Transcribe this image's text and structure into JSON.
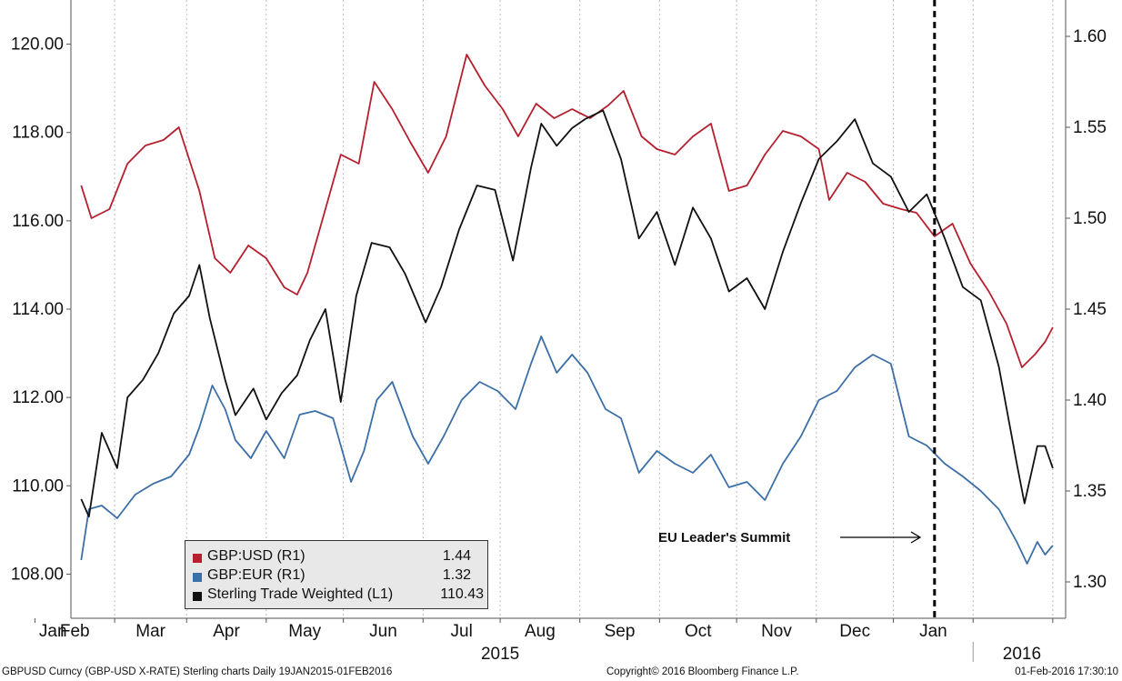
{
  "chart_data": {
    "type": "line",
    "x_months": [
      "Jan",
      "Feb",
      "Mar",
      "Apr",
      "May",
      "Jun",
      "Jul",
      "Aug",
      "Sep",
      "Oct",
      "Nov",
      "Dec",
      "Jan"
    ],
    "x_years": [
      "2015",
      "2016"
    ],
    "date_range": [
      "2015-01-19",
      "2016-02-01"
    ],
    "y_left": {
      "min": 107.0,
      "max": 121.0,
      "ticks": [
        "108.00",
        "110.00",
        "112.00",
        "114.00",
        "116.00",
        "118.00",
        "120.00"
      ]
    },
    "y_right": {
      "min": 1.28,
      "max": 1.62,
      "ticks": [
        "1.30",
        "1.35",
        "1.40",
        "1.45",
        "1.50",
        "1.55",
        "1.60"
      ]
    },
    "grid": "vertical dashed at month boundaries",
    "legend_position": "bottom-left",
    "series": [
      {
        "name": "GBP:USD (R1)",
        "axis": "right",
        "color": "#b51f2e",
        "last": "1.44",
        "points": [
          [
            "2015-01-19",
            1.518
          ],
          [
            "2015-01-23",
            1.5
          ],
          [
            "2015-01-30",
            1.505
          ],
          [
            "2015-02-06",
            1.53
          ],
          [
            "2015-02-13",
            1.54
          ],
          [
            "2015-02-20",
            1.543
          ],
          [
            "2015-02-26",
            1.55
          ],
          [
            "2015-03-06",
            1.515
          ],
          [
            "2015-03-12",
            1.478
          ],
          [
            "2015-03-18",
            1.47
          ],
          [
            "2015-03-25",
            1.485
          ],
          [
            "2015-04-01",
            1.478
          ],
          [
            "2015-04-08",
            1.462
          ],
          [
            "2015-04-13",
            1.458
          ],
          [
            "2015-04-17",
            1.47
          ],
          [
            "2015-04-24",
            1.505
          ],
          [
            "2015-04-30",
            1.535
          ],
          [
            "2015-05-07",
            1.53
          ],
          [
            "2015-05-13",
            1.575
          ],
          [
            "2015-05-20",
            1.56
          ],
          [
            "2015-05-27",
            1.542
          ],
          [
            "2015-06-03",
            1.525
          ],
          [
            "2015-06-10",
            1.545
          ],
          [
            "2015-06-18",
            1.59
          ],
          [
            "2015-06-25",
            1.573
          ],
          [
            "2015-07-02",
            1.56
          ],
          [
            "2015-07-08",
            1.545
          ],
          [
            "2015-07-15",
            1.563
          ],
          [
            "2015-07-22",
            1.555
          ],
          [
            "2015-07-29",
            1.56
          ],
          [
            "2015-08-05",
            1.555
          ],
          [
            "2015-08-12",
            1.562
          ],
          [
            "2015-08-18",
            1.57
          ],
          [
            "2015-08-25",
            1.545
          ],
          [
            "2015-08-31",
            1.538
          ],
          [
            "2015-09-07",
            1.535
          ],
          [
            "2015-09-14",
            1.545
          ],
          [
            "2015-09-21",
            1.552
          ],
          [
            "2015-09-28",
            1.515
          ],
          [
            "2015-10-05",
            1.518
          ],
          [
            "2015-10-12",
            1.535
          ],
          [
            "2015-10-19",
            1.548
          ],
          [
            "2015-10-26",
            1.545
          ],
          [
            "2015-11-02",
            1.538
          ],
          [
            "2015-11-06",
            1.51
          ],
          [
            "2015-11-13",
            1.525
          ],
          [
            "2015-11-20",
            1.52
          ],
          [
            "2015-11-27",
            1.508
          ],
          [
            "2015-12-04",
            1.505
          ],
          [
            "2015-12-10",
            1.503
          ],
          [
            "2015-12-17",
            1.49
          ],
          [
            "2015-12-24",
            1.497
          ],
          [
            "2015-12-31",
            1.475
          ],
          [
            "2016-01-07",
            1.46
          ],
          [
            "2016-01-14",
            1.442
          ],
          [
            "2016-01-20",
            1.418
          ],
          [
            "2016-01-25",
            1.425
          ],
          [
            "2016-01-29",
            1.432
          ],
          [
            "2016-02-01",
            1.44
          ]
        ]
      },
      {
        "name": "GBP:EUR (R1)",
        "axis": "right",
        "color": "#3c6fa6",
        "last": "1.32",
        "points": [
          [
            "2015-01-19",
            1.312
          ],
          [
            "2015-01-22",
            1.34
          ],
          [
            "2015-01-27",
            1.342
          ],
          [
            "2015-02-02",
            1.335
          ],
          [
            "2015-02-09",
            1.348
          ],
          [
            "2015-02-16",
            1.354
          ],
          [
            "2015-02-23",
            1.358
          ],
          [
            "2015-03-02",
            1.37
          ],
          [
            "2015-03-06",
            1.385
          ],
          [
            "2015-03-11",
            1.408
          ],
          [
            "2015-03-16",
            1.395
          ],
          [
            "2015-03-20",
            1.378
          ],
          [
            "2015-03-26",
            1.368
          ],
          [
            "2015-04-01",
            1.383
          ],
          [
            "2015-04-08",
            1.368
          ],
          [
            "2015-04-14",
            1.392
          ],
          [
            "2015-04-20",
            1.394
          ],
          [
            "2015-04-27",
            1.39
          ],
          [
            "2015-05-04",
            1.355
          ],
          [
            "2015-05-09",
            1.372
          ],
          [
            "2015-05-14",
            1.4
          ],
          [
            "2015-05-20",
            1.41
          ],
          [
            "2015-05-28",
            1.38
          ],
          [
            "2015-06-03",
            1.365
          ],
          [
            "2015-06-09",
            1.38
          ],
          [
            "2015-06-16",
            1.4
          ],
          [
            "2015-06-23",
            1.41
          ],
          [
            "2015-06-30",
            1.405
          ],
          [
            "2015-07-07",
            1.395
          ],
          [
            "2015-07-13",
            1.42
          ],
          [
            "2015-07-17",
            1.435
          ],
          [
            "2015-07-23",
            1.415
          ],
          [
            "2015-07-29",
            1.425
          ],
          [
            "2015-08-04",
            1.415
          ],
          [
            "2015-08-11",
            1.395
          ],
          [
            "2015-08-17",
            1.39
          ],
          [
            "2015-08-24",
            1.36
          ],
          [
            "2015-08-31",
            1.372
          ],
          [
            "2015-09-07",
            1.365
          ],
          [
            "2015-09-14",
            1.36
          ],
          [
            "2015-09-21",
            1.37
          ],
          [
            "2015-09-28",
            1.352
          ],
          [
            "2015-10-05",
            1.355
          ],
          [
            "2015-10-12",
            1.345
          ],
          [
            "2015-10-19",
            1.365
          ],
          [
            "2015-10-26",
            1.38
          ],
          [
            "2015-11-02",
            1.4
          ],
          [
            "2015-11-09",
            1.405
          ],
          [
            "2015-11-16",
            1.418
          ],
          [
            "2015-11-23",
            1.425
          ],
          [
            "2015-11-30",
            1.42
          ],
          [
            "2015-12-07",
            1.38
          ],
          [
            "2015-12-14",
            1.375
          ],
          [
            "2015-12-21",
            1.365
          ],
          [
            "2015-12-28",
            1.358
          ],
          [
            "2016-01-04",
            1.35
          ],
          [
            "2016-01-11",
            1.34
          ],
          [
            "2016-01-18",
            1.322
          ],
          [
            "2016-01-22",
            1.31
          ],
          [
            "2016-01-26",
            1.322
          ],
          [
            "2016-01-29",
            1.315
          ],
          [
            "2016-02-01",
            1.32
          ]
        ]
      },
      {
        "name": "Sterling Trade Weighted (L1)",
        "axis": "left",
        "color": "#111111",
        "last": "110.43",
        "points": [
          [
            "2015-01-19",
            109.7
          ],
          [
            "2015-01-22",
            109.3
          ],
          [
            "2015-01-27",
            111.2
          ],
          [
            "2015-02-02",
            110.4
          ],
          [
            "2015-02-06",
            112.0
          ],
          [
            "2015-02-12",
            112.4
          ],
          [
            "2015-02-18",
            113.0
          ],
          [
            "2015-02-24",
            113.9
          ],
          [
            "2015-03-02",
            114.3
          ],
          [
            "2015-03-06",
            115.0
          ],
          [
            "2015-03-10",
            113.8
          ],
          [
            "2015-03-16",
            112.4
          ],
          [
            "2015-03-20",
            111.6
          ],
          [
            "2015-03-27",
            112.2
          ],
          [
            "2015-04-01",
            111.5
          ],
          [
            "2015-04-07",
            112.1
          ],
          [
            "2015-04-13",
            112.5
          ],
          [
            "2015-04-18",
            113.3
          ],
          [
            "2015-04-24",
            114.0
          ],
          [
            "2015-04-30",
            111.9
          ],
          [
            "2015-05-06",
            114.3
          ],
          [
            "2015-05-12",
            115.5
          ],
          [
            "2015-05-19",
            115.4
          ],
          [
            "2015-05-25",
            114.8
          ],
          [
            "2015-06-02",
            113.7
          ],
          [
            "2015-06-08",
            114.5
          ],
          [
            "2015-06-15",
            115.8
          ],
          [
            "2015-06-22",
            116.8
          ],
          [
            "2015-06-29",
            116.7
          ],
          [
            "2015-07-06",
            115.1
          ],
          [
            "2015-07-13",
            117.2
          ],
          [
            "2015-07-17",
            118.2
          ],
          [
            "2015-07-23",
            117.7
          ],
          [
            "2015-07-29",
            118.1
          ],
          [
            "2015-08-03",
            118.3
          ],
          [
            "2015-08-10",
            118.5
          ],
          [
            "2015-08-17",
            117.4
          ],
          [
            "2015-08-24",
            115.6
          ],
          [
            "2015-08-31",
            116.2
          ],
          [
            "2015-09-07",
            115.0
          ],
          [
            "2015-09-14",
            116.3
          ],
          [
            "2015-09-21",
            115.6
          ],
          [
            "2015-09-28",
            114.4
          ],
          [
            "2015-10-05",
            114.7
          ],
          [
            "2015-10-12",
            114.0
          ],
          [
            "2015-10-19",
            115.3
          ],
          [
            "2015-10-26",
            116.4
          ],
          [
            "2015-11-02",
            117.4
          ],
          [
            "2015-11-09",
            117.8
          ],
          [
            "2015-11-16",
            118.3
          ],
          [
            "2015-11-23",
            117.3
          ],
          [
            "2015-11-30",
            117.0
          ],
          [
            "2015-12-07",
            116.2
          ],
          [
            "2015-12-14",
            116.6
          ],
          [
            "2015-12-21",
            115.6
          ],
          [
            "2015-12-28",
            114.5
          ],
          [
            "2016-01-04",
            114.2
          ],
          [
            "2016-01-11",
            112.7
          ],
          [
            "2016-01-18",
            110.5
          ],
          [
            "2016-01-21",
            109.6
          ],
          [
            "2016-01-26",
            110.9
          ],
          [
            "2016-01-29",
            110.9
          ],
          [
            "2016-02-01",
            110.4
          ]
        ]
      }
    ],
    "event_line": {
      "date": "2015-12-17",
      "label": "EU Leader's Summit"
    }
  },
  "footer": {
    "left": "GBPUSD Curncy (GBP-USD X-RATE) Sterling charts  Daily 19JAN2015-01FEB2016",
    "center": "Copyright© 2016 Bloomberg Finance L.P.",
    "right": "01-Feb-2016 17:30:10"
  }
}
